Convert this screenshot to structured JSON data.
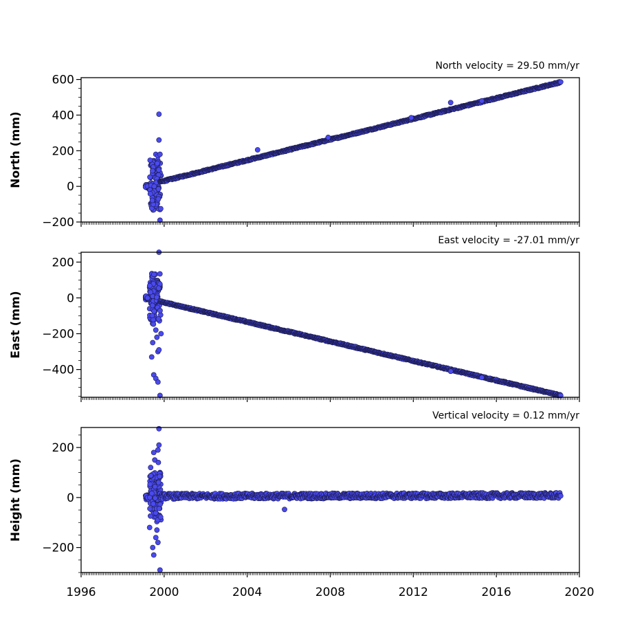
{
  "chart_data": {
    "type": "scatter",
    "marker_color": "#4a4af0",
    "marker_edge": "#1a1a4a",
    "xlim": [
      1996,
      2020
    ],
    "xticks": [
      1996,
      2000,
      2004,
      2008,
      2012,
      2016,
      2020
    ],
    "xtick_labels": [
      "1996",
      "2000",
      "2004",
      "2008",
      "2012",
      "2016",
      "2020"
    ],
    "panels": [
      {
        "id": "north",
        "ylabel": "North (mm)",
        "annotation": "North velocity = 29.50 mm/yr",
        "ylim": [
          -200,
          610
        ],
        "yticks": [
          -200,
          0,
          200,
          400,
          600
        ],
        "ytick_labels": [
          "−200",
          "0",
          "200",
          "400",
          "600"
        ],
        "trend": {
          "x0": 1999.8,
          "y0": 25,
          "x1": 2019.1,
          "y1": 585
        },
        "early_points": [
          [
            1999.2,
            0
          ],
          [
            1999.3,
            -20
          ],
          [
            1999.35,
            50
          ],
          [
            1999.4,
            130
          ],
          [
            1999.45,
            120
          ],
          [
            1999.5,
            -60
          ],
          [
            1999.5,
            -130
          ],
          [
            1999.55,
            80
          ],
          [
            1999.6,
            180
          ],
          [
            1999.6,
            -110
          ],
          [
            1999.65,
            30
          ],
          [
            1999.7,
            170
          ],
          [
            1999.7,
            -10
          ],
          [
            1999.75,
            405
          ],
          [
            1999.75,
            260
          ],
          [
            1999.8,
            180
          ],
          [
            1999.8,
            -190
          ],
          [
            1999.8,
            -130
          ],
          [
            1999.85,
            60
          ],
          [
            1999.55,
            -80
          ],
          [
            1999.4,
            -40
          ],
          [
            1999.65,
            100
          ],
          [
            1999.72,
            -60
          ]
        ],
        "outliers": [
          [
            2013.8,
            470
          ],
          [
            2015.3,
            480
          ],
          [
            2004.5,
            205
          ],
          [
            2007.9,
            275
          ],
          [
            2011.9,
            385
          ]
        ]
      },
      {
        "id": "east",
        "ylabel": "East (mm)",
        "annotation": "East velocity = -27.01 mm/yr",
        "ylim": [
          -555,
          255
        ],
        "yticks": [
          -400,
          -200,
          0,
          200
        ],
        "ytick_labels": [
          "−400",
          "−200",
          "0",
          "200"
        ],
        "trend": {
          "x0": 1999.8,
          "y0": -20,
          "x1": 2019.1,
          "y1": -545
        },
        "early_points": [
          [
            1999.2,
            0
          ],
          [
            1999.3,
            -60
          ],
          [
            1999.35,
            -120
          ],
          [
            1999.4,
            -330
          ],
          [
            1999.45,
            -250
          ],
          [
            1999.5,
            -430
          ],
          [
            1999.5,
            60
          ],
          [
            1999.55,
            100
          ],
          [
            1999.6,
            -180
          ],
          [
            1999.6,
            -450
          ],
          [
            1999.65,
            20
          ],
          [
            1999.7,
            -470
          ],
          [
            1999.7,
            -300
          ],
          [
            1999.75,
            255
          ],
          [
            1999.75,
            -290
          ],
          [
            1999.8,
            60
          ],
          [
            1999.8,
            -545
          ],
          [
            1999.85,
            -200
          ],
          [
            1999.4,
            -20
          ],
          [
            1999.55,
            -100
          ],
          [
            1999.65,
            -220
          ],
          [
            1999.72,
            40
          ]
        ],
        "outliers": [
          [
            2015.3,
            -445
          ],
          [
            2013.8,
            -410
          ]
        ]
      },
      {
        "id": "height",
        "ylabel": "Height (mm)",
        "annotation": "Vertical velocity = 0.12 mm/yr",
        "ylim": [
          -300,
          280
        ],
        "yticks": [
          -200,
          0,
          200
        ],
        "ytick_labels": [
          "−200",
          "0",
          "200"
        ],
        "trend": {
          "x0": 1999.8,
          "y0": 5,
          "x1": 2019.1,
          "y1": 8
        },
        "early_points": [
          [
            1999.2,
            0
          ],
          [
            1999.3,
            -120
          ],
          [
            1999.35,
            120
          ],
          [
            1999.4,
            90
          ],
          [
            1999.45,
            -200
          ],
          [
            1999.5,
            -230
          ],
          [
            1999.5,
            180
          ],
          [
            1999.55,
            150
          ],
          [
            1999.6,
            -160
          ],
          [
            1999.6,
            60
          ],
          [
            1999.65,
            -80
          ],
          [
            1999.7,
            190
          ],
          [
            1999.7,
            -180
          ],
          [
            1999.75,
            275
          ],
          [
            1999.75,
            210
          ],
          [
            1999.8,
            -290
          ],
          [
            1999.8,
            100
          ],
          [
            1999.85,
            -20
          ],
          [
            1999.4,
            -50
          ],
          [
            1999.55,
            30
          ],
          [
            1999.65,
            -130
          ],
          [
            1999.72,
            140
          ]
        ],
        "outliers": [
          [
            2005.8,
            -48
          ]
        ]
      }
    ]
  }
}
